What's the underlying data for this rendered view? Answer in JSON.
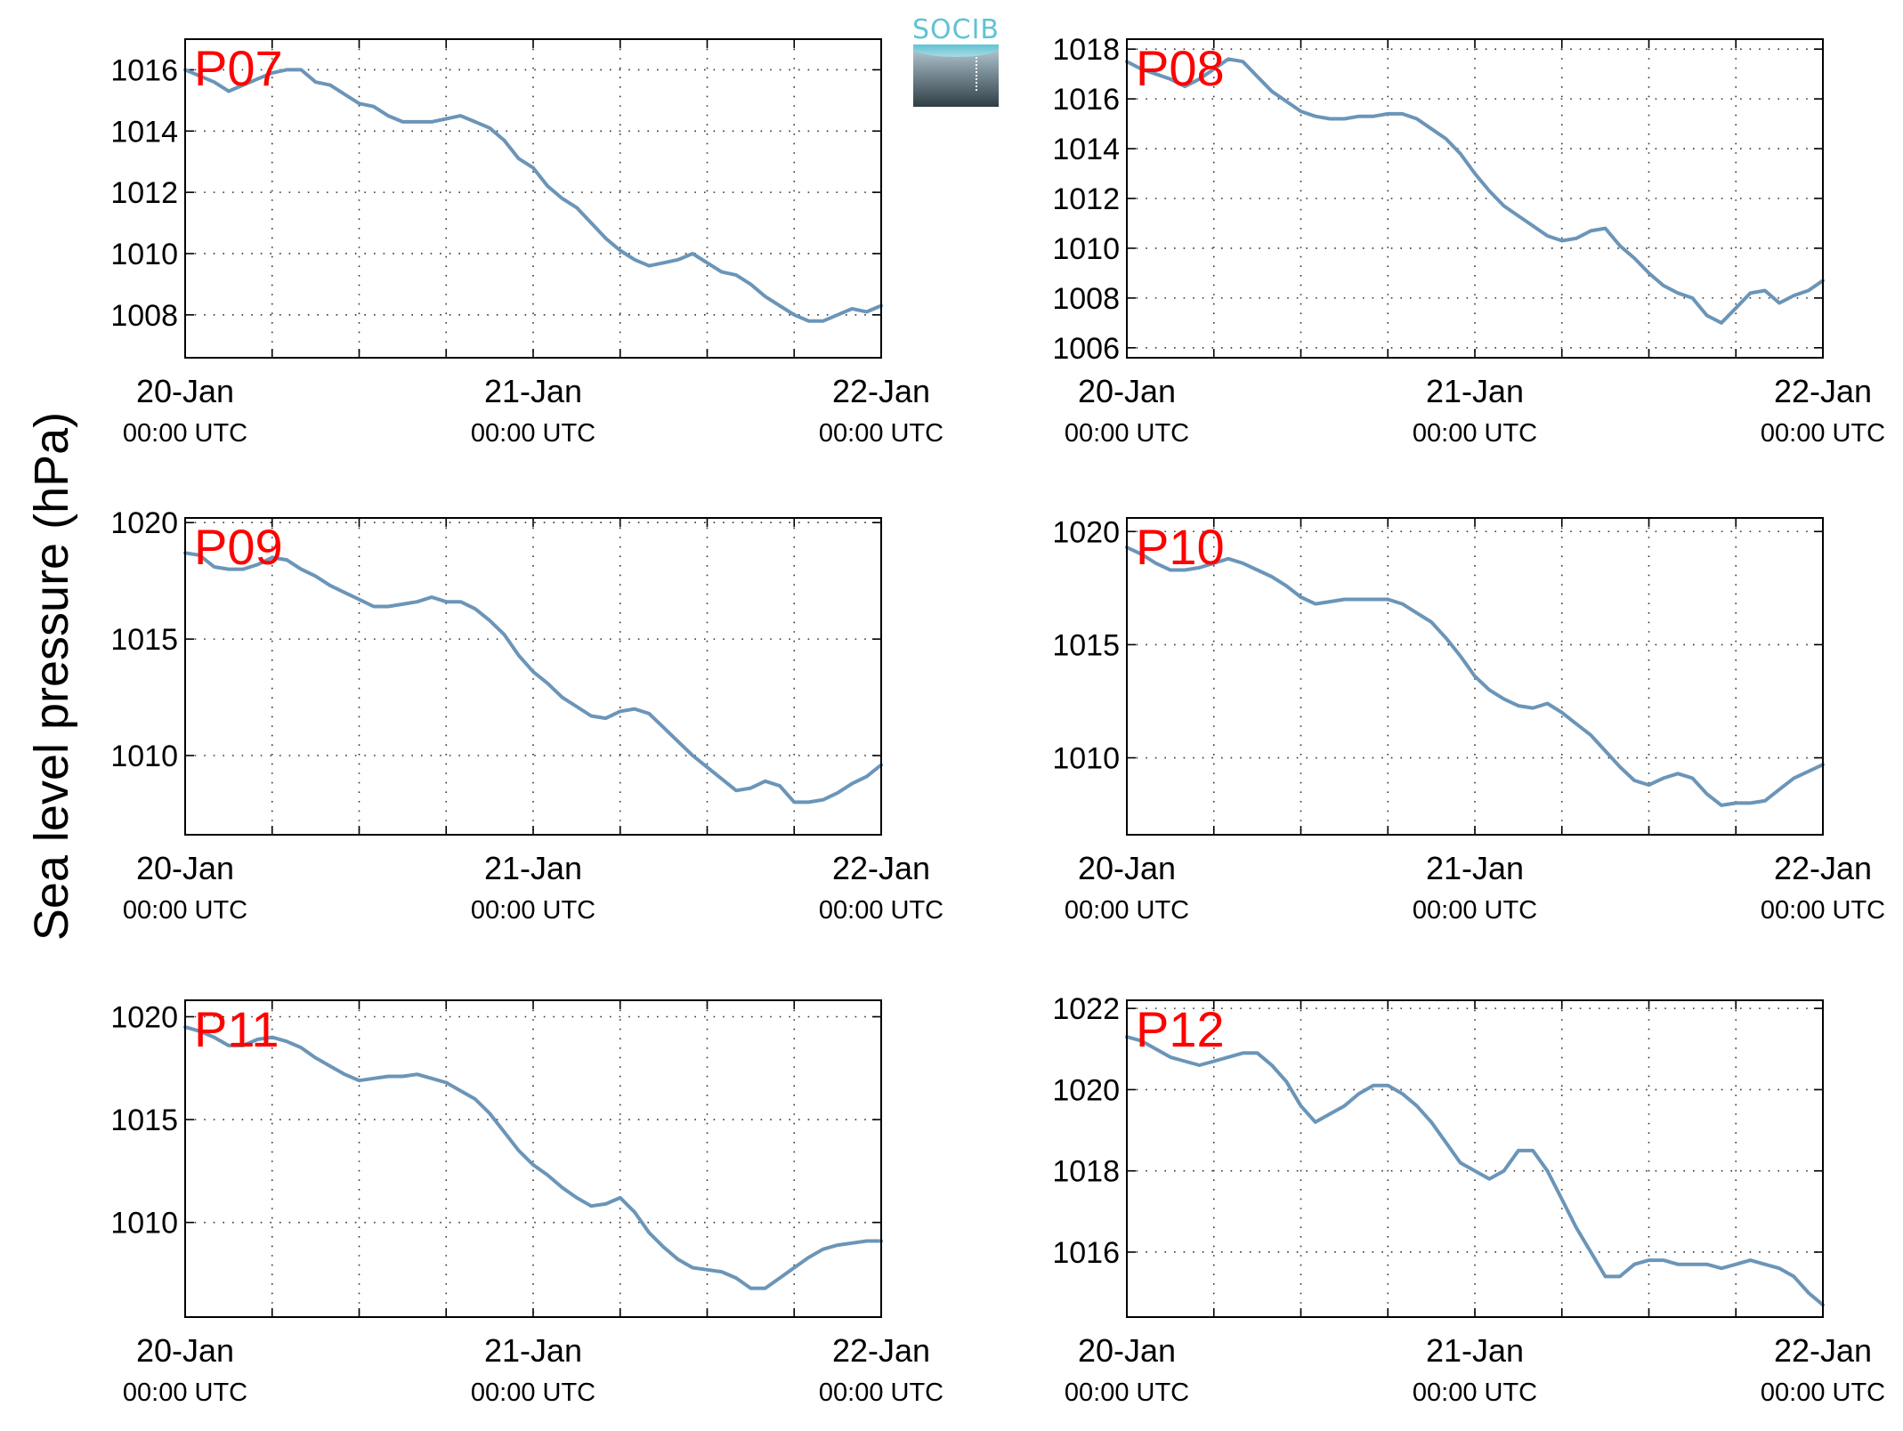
{
  "figure": {
    "ylabel": "Sea level pressure (hPa)",
    "logo_text": "SOCIB"
  },
  "chart_data": [
    {
      "type": "line",
      "title": "P07",
      "x_ticks": [
        "20-Jan|00:00 UTC",
        "21-Jan|00:00 UTC",
        "22-Jan|00:00 UTC"
      ],
      "x_range_hours": [
        0,
        48
      ],
      "ylim": [
        1006.6,
        1017
      ],
      "y_ticks": [
        1008,
        1010,
        1012,
        1014,
        1016
      ],
      "grid": true,
      "color": "#6b95b8",
      "series": [
        {
          "x": [
            0,
            1,
            2,
            3,
            4,
            5,
            6,
            7,
            8,
            9,
            10,
            11,
            12,
            13,
            14,
            15,
            16,
            17,
            18,
            19,
            20,
            21,
            22,
            23,
            24,
            25,
            26,
            27,
            28,
            29,
            30,
            31,
            32,
            33,
            34,
            35,
            36,
            37,
            38,
            39,
            40,
            41,
            42,
            43,
            44,
            45,
            46,
            47,
            48
          ],
          "y": [
            1016.0,
            1015.8,
            1015.6,
            1015.3,
            1015.5,
            1015.7,
            1015.9,
            1016.0,
            1016.0,
            1015.6,
            1015.5,
            1015.2,
            1014.9,
            1014.8,
            1014.5,
            1014.3,
            1014.3,
            1014.3,
            1014.4,
            1014.5,
            1014.3,
            1014.1,
            1013.7,
            1013.1,
            1012.8,
            1012.2,
            1011.8,
            1011.5,
            1011.0,
            1010.5,
            1010.1,
            1009.8,
            1009.6,
            1009.7,
            1009.8,
            1010.0,
            1009.7,
            1009.4,
            1009.3,
            1009.0,
            1008.6,
            1008.3,
            1008.0,
            1007.8,
            1007.8,
            1008.0,
            1008.2,
            1008.1,
            1008.3
          ]
        }
      ]
    },
    {
      "type": "line",
      "title": "P08",
      "x_ticks": [
        "20-Jan|00:00 UTC",
        "21-Jan|00:00 UTC",
        "22-Jan|00:00 UTC"
      ],
      "x_range_hours": [
        0,
        48
      ],
      "ylim": [
        1005.6,
        1018.4
      ],
      "y_ticks": [
        1006,
        1008,
        1010,
        1012,
        1014,
        1016,
        1018
      ],
      "grid": true,
      "color": "#6b95b8",
      "series": [
        {
          "x": [
            0,
            1,
            2,
            3,
            4,
            5,
            6,
            7,
            8,
            9,
            10,
            11,
            12,
            13,
            14,
            15,
            16,
            17,
            18,
            19,
            20,
            21,
            22,
            23,
            24,
            25,
            26,
            27,
            28,
            29,
            30,
            31,
            32,
            33,
            34,
            35,
            36,
            37,
            38,
            39,
            40,
            41,
            42,
            43,
            44,
            45,
            46,
            47,
            48
          ],
          "y": [
            1017.5,
            1017.2,
            1017.0,
            1016.8,
            1016.5,
            1016.8,
            1017.2,
            1017.6,
            1017.5,
            1016.9,
            1016.3,
            1015.9,
            1015.5,
            1015.3,
            1015.2,
            1015.2,
            1015.3,
            1015.3,
            1015.4,
            1015.4,
            1015.2,
            1014.8,
            1014.4,
            1013.8,
            1013.0,
            1012.3,
            1011.7,
            1011.3,
            1010.9,
            1010.5,
            1010.3,
            1010.4,
            1010.7,
            1010.8,
            1010.1,
            1009.6,
            1009.0,
            1008.5,
            1008.2,
            1008.0,
            1007.3,
            1007.0,
            1007.6,
            1008.2,
            1008.3,
            1007.8,
            1008.1,
            1008.3,
            1008.7
          ]
        }
      ]
    },
    {
      "type": "line",
      "title": "P09",
      "x_ticks": [
        "20-Jan|00:00 UTC",
        "21-Jan|00:00 UTC",
        "22-Jan|00:00 UTC"
      ],
      "x_range_hours": [
        0,
        48
      ],
      "ylim": [
        1006.6,
        1020.2
      ],
      "y_ticks": [
        1010,
        1015,
        1020
      ],
      "grid": true,
      "color": "#6b95b8",
      "series": [
        {
          "x": [
            0,
            1,
            2,
            3,
            4,
            5,
            6,
            7,
            8,
            9,
            10,
            11,
            12,
            13,
            14,
            15,
            16,
            17,
            18,
            19,
            20,
            21,
            22,
            23,
            24,
            25,
            26,
            27,
            28,
            29,
            30,
            31,
            32,
            33,
            34,
            35,
            36,
            37,
            38,
            39,
            40,
            41,
            42,
            43,
            44,
            45,
            46,
            47,
            48
          ],
          "y": [
            1018.7,
            1018.6,
            1018.1,
            1018.0,
            1018.0,
            1018.2,
            1018.5,
            1018.4,
            1018.0,
            1017.7,
            1017.3,
            1017.0,
            1016.7,
            1016.4,
            1016.4,
            1016.5,
            1016.6,
            1016.8,
            1016.6,
            1016.6,
            1016.3,
            1015.8,
            1015.2,
            1014.3,
            1013.6,
            1013.1,
            1012.5,
            1012.1,
            1011.7,
            1011.6,
            1011.9,
            1012.0,
            1011.8,
            1011.2,
            1010.6,
            1010.0,
            1009.5,
            1009.0,
            1008.5,
            1008.6,
            1008.9,
            1008.7,
            1008.0,
            1008.0,
            1008.1,
            1008.4,
            1008.8,
            1009.1,
            1009.6
          ]
        }
      ]
    },
    {
      "type": "line",
      "title": "P10",
      "x_ticks": [
        "20-Jan|00:00 UTC",
        "21-Jan|00:00 UTC",
        "22-Jan|00:00 UTC"
      ],
      "x_range_hours": [
        0,
        48
      ],
      "ylim": [
        1006.6,
        1020.6
      ],
      "y_ticks": [
        1010,
        1015,
        1020
      ],
      "grid": true,
      "color": "#6b95b8",
      "series": [
        {
          "x": [
            0,
            1,
            2,
            3,
            4,
            5,
            6,
            7,
            8,
            9,
            10,
            11,
            12,
            13,
            14,
            15,
            16,
            17,
            18,
            19,
            20,
            21,
            22,
            23,
            24,
            25,
            26,
            27,
            28,
            29,
            30,
            31,
            32,
            33,
            34,
            35,
            36,
            37,
            38,
            39,
            40,
            41,
            42,
            43,
            44,
            45,
            46,
            47,
            48
          ],
          "y": [
            1019.3,
            1019.0,
            1018.6,
            1018.3,
            1018.3,
            1018.4,
            1018.6,
            1018.8,
            1018.6,
            1018.3,
            1018.0,
            1017.6,
            1017.1,
            1016.8,
            1016.9,
            1017.0,
            1017.0,
            1017.0,
            1017.0,
            1016.8,
            1016.4,
            1016.0,
            1015.3,
            1014.5,
            1013.6,
            1013.0,
            1012.6,
            1012.3,
            1012.2,
            1012.4,
            1012.0,
            1011.5,
            1011.0,
            1010.3,
            1009.6,
            1009.0,
            1008.8,
            1009.1,
            1009.3,
            1009.1,
            1008.4,
            1007.9,
            1008.0,
            1008.0,
            1008.1,
            1008.6,
            1009.1,
            1009.4,
            1009.7
          ]
        }
      ]
    },
    {
      "type": "line",
      "title": "P11",
      "x_ticks": [
        "20-Jan|00:00 UTC",
        "21-Jan|00:00 UTC",
        "22-Jan|00:00 UTC"
      ],
      "x_range_hours": [
        0,
        48
      ],
      "ylim": [
        1005.4,
        1020.8
      ],
      "y_ticks": [
        1010,
        1015,
        1020
      ],
      "grid": true,
      "color": "#6b95b8",
      "series": [
        {
          "x": [
            0,
            1,
            2,
            3,
            4,
            5,
            6,
            7,
            8,
            9,
            10,
            11,
            12,
            13,
            14,
            15,
            16,
            17,
            18,
            19,
            20,
            21,
            22,
            23,
            24,
            25,
            26,
            27,
            28,
            29,
            30,
            31,
            32,
            33,
            34,
            35,
            36,
            37,
            38,
            39,
            40,
            41,
            42,
            43,
            44,
            45,
            46,
            47,
            48
          ],
          "y": [
            1019.5,
            1019.3,
            1019.0,
            1018.6,
            1018.6,
            1018.9,
            1019.0,
            1018.8,
            1018.5,
            1018.0,
            1017.6,
            1017.2,
            1016.9,
            1017.0,
            1017.1,
            1017.1,
            1017.2,
            1017.0,
            1016.8,
            1016.4,
            1016.0,
            1015.3,
            1014.4,
            1013.5,
            1012.8,
            1012.3,
            1011.7,
            1011.2,
            1010.8,
            1010.9,
            1011.2,
            1010.5,
            1009.5,
            1008.8,
            1008.2,
            1007.8,
            1007.7,
            1007.6,
            1007.3,
            1006.8,
            1006.8,
            1007.3,
            1007.8,
            1008.3,
            1008.7,
            1008.9,
            1009.0,
            1009.1,
            1009.1
          ]
        }
      ]
    },
    {
      "type": "line",
      "title": "P12",
      "x_ticks": [
        "20-Jan|00:00 UTC",
        "21-Jan|00:00 UTC",
        "22-Jan|00:00 UTC"
      ],
      "x_range_hours": [
        0,
        48
      ],
      "ylim": [
        1014.4,
        1022.2
      ],
      "y_ticks": [
        1016,
        1018,
        1020,
        1022
      ],
      "grid": true,
      "color": "#6b95b8",
      "series": [
        {
          "x": [
            0,
            1,
            2,
            3,
            4,
            5,
            6,
            7,
            8,
            9,
            10,
            11,
            12,
            13,
            14,
            15,
            16,
            17,
            18,
            19,
            20,
            21,
            22,
            23,
            24,
            25,
            26,
            27,
            28,
            29,
            30,
            31,
            32,
            33,
            34,
            35,
            36,
            37,
            38,
            39,
            40,
            41,
            42,
            43,
            44,
            45,
            46,
            47,
            48
          ],
          "y": [
            1021.3,
            1021.2,
            1021.0,
            1020.8,
            1020.7,
            1020.6,
            1020.7,
            1020.8,
            1020.9,
            1020.9,
            1020.6,
            1020.2,
            1019.6,
            1019.2,
            1019.4,
            1019.6,
            1019.9,
            1020.1,
            1020.1,
            1019.9,
            1019.6,
            1019.2,
            1018.7,
            1018.2,
            1018.0,
            1017.8,
            1018.0,
            1018.5,
            1018.5,
            1018.0,
            1017.3,
            1016.6,
            1016.0,
            1015.4,
            1015.4,
            1015.7,
            1015.8,
            1015.8,
            1015.7,
            1015.7,
            1015.7,
            1015.6,
            1015.7,
            1015.8,
            1015.7,
            1015.6,
            1015.4,
            1015.0,
            1014.7
          ]
        }
      ]
    }
  ]
}
